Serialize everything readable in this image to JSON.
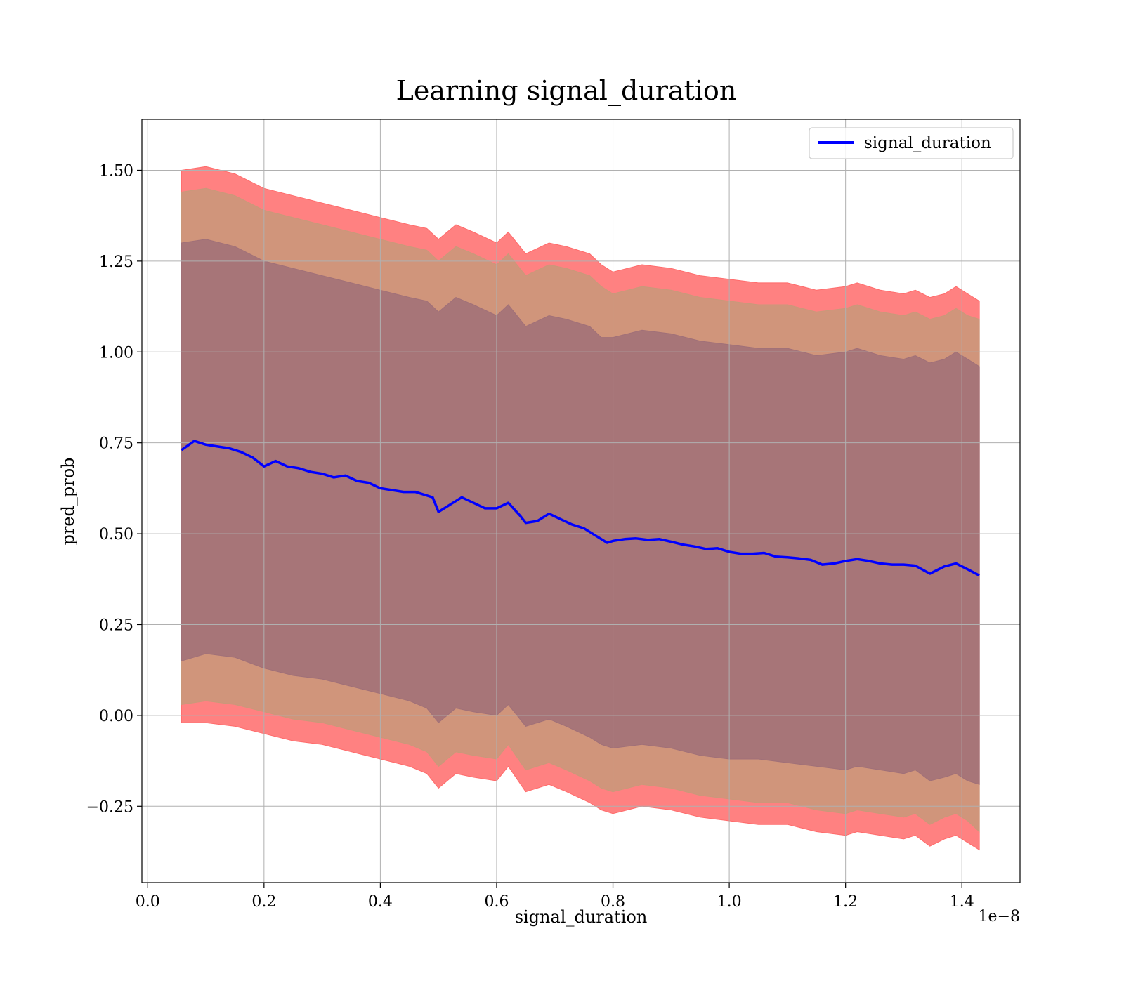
{
  "chart_data": {
    "type": "line",
    "title": "Learning signal_duration",
    "xlabel": "signal_duration",
    "ylabel": "pred_prob",
    "x_offset_label": "1e−8",
    "xlim": [
      -0.01,
      1.5
    ],
    "ylim": [
      -0.46,
      1.64
    ],
    "grid": true,
    "legend_placement": "top-right",
    "x_ticks": [
      0.0,
      0.2,
      0.4,
      0.6,
      0.8,
      1.0,
      1.2,
      1.4
    ],
    "x_tick_labels": [
      "0.0",
      "0.2",
      "0.4",
      "0.6",
      "0.8",
      "1.0",
      "1.2",
      "1.4"
    ],
    "y_ticks": [
      -0.25,
      0.0,
      0.25,
      0.5,
      0.75,
      1.0,
      1.25,
      1.5
    ],
    "y_tick_labels": [
      "−0.25",
      "0.00",
      "0.25",
      "0.50",
      "0.75",
      "1.00",
      "1.25",
      "1.50"
    ],
    "series": [
      {
        "name": "signal_duration",
        "color": "#0000ff",
        "x": [
          0.058,
          0.08,
          0.1,
          0.12,
          0.14,
          0.16,
          0.18,
          0.2,
          0.22,
          0.24,
          0.26,
          0.28,
          0.3,
          0.32,
          0.34,
          0.36,
          0.38,
          0.4,
          0.42,
          0.44,
          0.46,
          0.48,
          0.49,
          0.5,
          0.52,
          0.54,
          0.56,
          0.58,
          0.6,
          0.62,
          0.64,
          0.65,
          0.67,
          0.69,
          0.71,
          0.73,
          0.75,
          0.77,
          0.79,
          0.8,
          0.82,
          0.84,
          0.86,
          0.88,
          0.9,
          0.92,
          0.94,
          0.96,
          0.98,
          1.0,
          1.02,
          1.04,
          1.06,
          1.08,
          1.1,
          1.12,
          1.14,
          1.16,
          1.18,
          1.2,
          1.22,
          1.24,
          1.26,
          1.28,
          1.3,
          1.32,
          1.345,
          1.37,
          1.39,
          1.41,
          1.43
        ],
        "values": [
          0.73,
          0.755,
          0.745,
          0.74,
          0.735,
          0.725,
          0.71,
          0.685,
          0.7,
          0.685,
          0.68,
          0.67,
          0.665,
          0.655,
          0.66,
          0.645,
          0.64,
          0.625,
          0.62,
          0.615,
          0.615,
          0.605,
          0.6,
          0.56,
          0.58,
          0.6,
          0.585,
          0.57,
          0.57,
          0.585,
          0.55,
          0.53,
          0.535,
          0.555,
          0.54,
          0.525,
          0.515,
          0.495,
          0.475,
          0.48,
          0.485,
          0.487,
          0.483,
          0.485,
          0.478,
          0.47,
          0.465,
          0.458,
          0.46,
          0.45,
          0.445,
          0.445,
          0.447,
          0.437,
          0.435,
          0.432,
          0.428,
          0.415,
          0.418,
          0.425,
          0.43,
          0.425,
          0.418,
          0.415,
          0.415,
          0.412,
          0.39,
          0.41,
          0.418,
          0.402,
          0.385
        ]
      }
    ],
    "bands": [
      {
        "name": "outer",
        "color": "#ff6b6b",
        "x": [
          0.058,
          0.1,
          0.15,
          0.2,
          0.25,
          0.3,
          0.35,
          0.4,
          0.45,
          0.48,
          0.5,
          0.53,
          0.56,
          0.6,
          0.62,
          0.65,
          0.69,
          0.72,
          0.76,
          0.78,
          0.8,
          0.85,
          0.9,
          0.95,
          1.0,
          1.05,
          1.1,
          1.15,
          1.2,
          1.22,
          1.26,
          1.3,
          1.32,
          1.345,
          1.37,
          1.39,
          1.41,
          1.43
        ],
        "upper": [
          1.5,
          1.51,
          1.49,
          1.45,
          1.43,
          1.41,
          1.39,
          1.37,
          1.35,
          1.34,
          1.31,
          1.35,
          1.33,
          1.3,
          1.33,
          1.27,
          1.3,
          1.29,
          1.27,
          1.24,
          1.22,
          1.24,
          1.23,
          1.21,
          1.2,
          1.19,
          1.19,
          1.17,
          1.18,
          1.19,
          1.17,
          1.16,
          1.17,
          1.15,
          1.16,
          1.18,
          1.16,
          1.14
        ],
        "lower": [
          -0.02,
          -0.02,
          -0.03,
          -0.05,
          -0.07,
          -0.08,
          -0.1,
          -0.12,
          -0.14,
          -0.16,
          -0.2,
          -0.16,
          -0.17,
          -0.18,
          -0.14,
          -0.21,
          -0.19,
          -0.21,
          -0.24,
          -0.26,
          -0.27,
          -0.25,
          -0.26,
          -0.28,
          -0.29,
          -0.3,
          -0.3,
          -0.32,
          -0.33,
          -0.32,
          -0.33,
          -0.34,
          -0.33,
          -0.36,
          -0.34,
          -0.33,
          -0.35,
          -0.37
        ]
      },
      {
        "name": "middle",
        "color": "#c8997a",
        "x": [
          0.058,
          0.1,
          0.15,
          0.2,
          0.25,
          0.3,
          0.35,
          0.4,
          0.45,
          0.48,
          0.5,
          0.53,
          0.56,
          0.6,
          0.62,
          0.65,
          0.69,
          0.72,
          0.76,
          0.78,
          0.8,
          0.85,
          0.9,
          0.95,
          1.0,
          1.05,
          1.1,
          1.15,
          1.2,
          1.22,
          1.26,
          1.3,
          1.32,
          1.345,
          1.37,
          1.39,
          1.41,
          1.43
        ],
        "upper": [
          1.44,
          1.45,
          1.43,
          1.39,
          1.37,
          1.35,
          1.33,
          1.31,
          1.29,
          1.28,
          1.25,
          1.29,
          1.27,
          1.24,
          1.27,
          1.21,
          1.24,
          1.23,
          1.21,
          1.18,
          1.16,
          1.18,
          1.17,
          1.15,
          1.14,
          1.13,
          1.13,
          1.11,
          1.12,
          1.13,
          1.11,
          1.1,
          1.11,
          1.09,
          1.1,
          1.12,
          1.1,
          1.09
        ],
        "lower": [
          0.03,
          0.04,
          0.03,
          0.01,
          -0.01,
          -0.02,
          -0.04,
          -0.06,
          -0.08,
          -0.1,
          -0.14,
          -0.1,
          -0.11,
          -0.12,
          -0.08,
          -0.15,
          -0.13,
          -0.15,
          -0.18,
          -0.2,
          -0.21,
          -0.19,
          -0.2,
          -0.22,
          -0.23,
          -0.24,
          -0.24,
          -0.26,
          -0.27,
          -0.26,
          -0.27,
          -0.28,
          -0.27,
          -0.3,
          -0.28,
          -0.27,
          -0.29,
          -0.32
        ]
      },
      {
        "name": "inner",
        "color": "#a07078",
        "x": [
          0.058,
          0.1,
          0.15,
          0.2,
          0.25,
          0.3,
          0.35,
          0.4,
          0.45,
          0.48,
          0.5,
          0.53,
          0.56,
          0.6,
          0.62,
          0.65,
          0.69,
          0.72,
          0.76,
          0.78,
          0.8,
          0.85,
          0.9,
          0.95,
          1.0,
          1.05,
          1.1,
          1.15,
          1.2,
          1.22,
          1.26,
          1.3,
          1.32,
          1.345,
          1.37,
          1.39,
          1.41,
          1.43
        ],
        "upper": [
          1.3,
          1.31,
          1.29,
          1.25,
          1.23,
          1.21,
          1.19,
          1.17,
          1.15,
          1.14,
          1.11,
          1.15,
          1.13,
          1.1,
          1.13,
          1.07,
          1.1,
          1.09,
          1.07,
          1.04,
          1.04,
          1.06,
          1.05,
          1.03,
          1.02,
          1.01,
          1.01,
          0.99,
          1.0,
          1.01,
          0.99,
          0.98,
          0.99,
          0.97,
          0.98,
          1.0,
          0.98,
          0.96
        ],
        "lower": [
          0.15,
          0.17,
          0.16,
          0.13,
          0.11,
          0.1,
          0.08,
          0.06,
          0.04,
          0.02,
          -0.02,
          0.02,
          0.01,
          0.0,
          0.03,
          -0.03,
          -0.01,
          -0.03,
          -0.06,
          -0.08,
          -0.09,
          -0.08,
          -0.09,
          -0.11,
          -0.12,
          -0.12,
          -0.13,
          -0.14,
          -0.15,
          -0.14,
          -0.15,
          -0.16,
          -0.15,
          -0.18,
          -0.17,
          -0.16,
          -0.18,
          -0.19
        ]
      }
    ]
  }
}
